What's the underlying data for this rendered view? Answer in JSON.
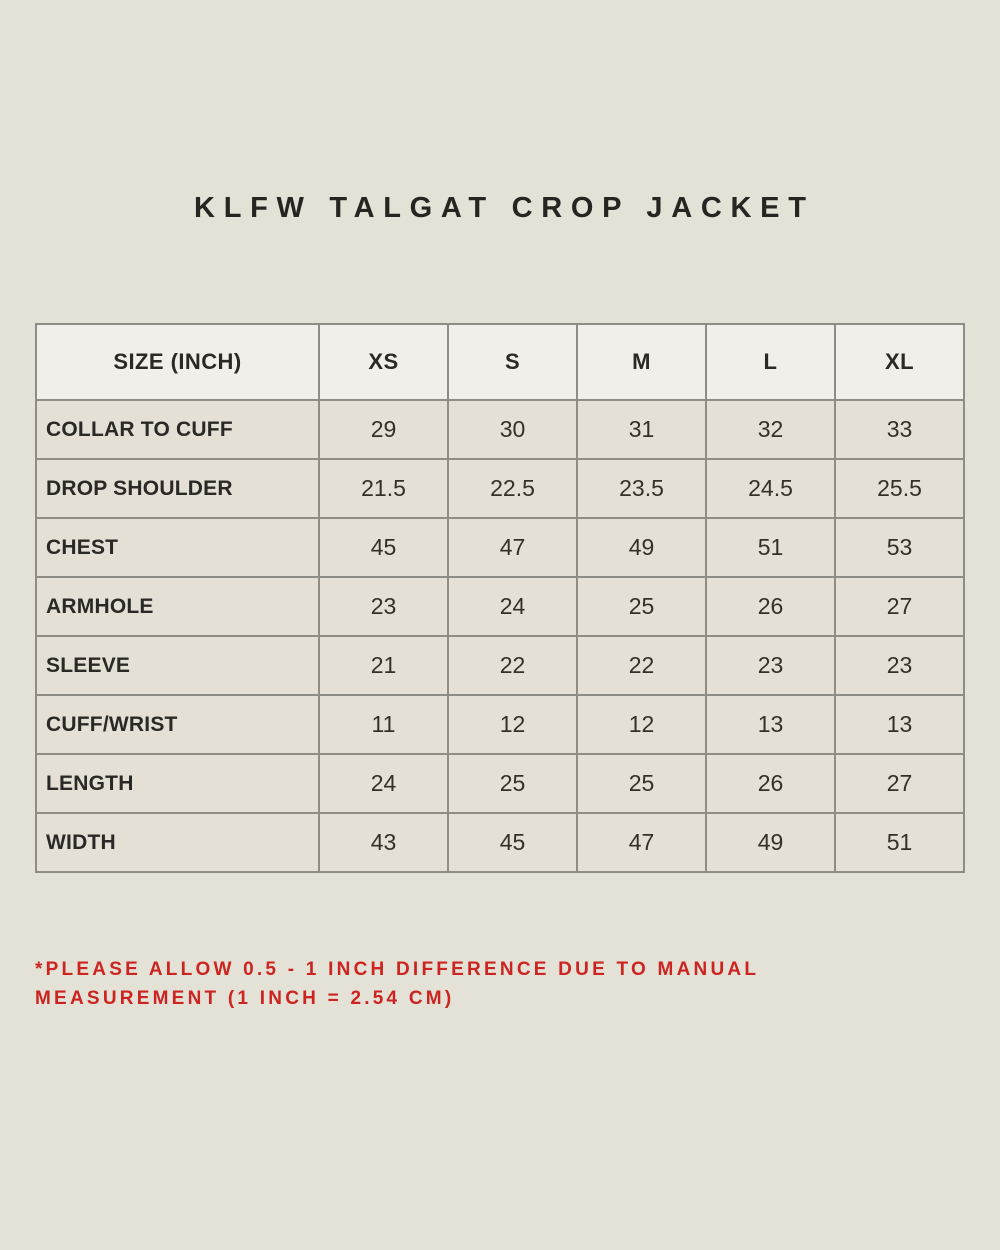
{
  "title": "KLFW TALGAT CROP JACKET",
  "table": {
    "header": [
      "SIZE (INCH)",
      "XS",
      "S",
      "M",
      "L",
      "XL"
    ],
    "rows": [
      {
        "label": "COLLAR TO CUFF",
        "values": [
          "29",
          "30",
          "31",
          "32",
          "33"
        ]
      },
      {
        "label": "DROP SHOULDER",
        "values": [
          "21.5",
          "22.5",
          "23.5",
          "24.5",
          "25.5"
        ]
      },
      {
        "label": "CHEST",
        "values": [
          "45",
          "47",
          "49",
          "51",
          "53"
        ]
      },
      {
        "label": "ARMHOLE",
        "values": [
          "23",
          "24",
          "25",
          "26",
          "27"
        ]
      },
      {
        "label": "SLEEVE",
        "values": [
          "21",
          "22",
          "22",
          "23",
          "23"
        ]
      },
      {
        "label": "CUFF/WRIST",
        "values": [
          "11",
          "12",
          "12",
          "13",
          "13"
        ]
      },
      {
        "label": "LENGTH",
        "values": [
          "24",
          "25",
          "25",
          "26",
          "27"
        ]
      },
      {
        "label": "WIDTH",
        "values": [
          "43",
          "45",
          "47",
          "49",
          "51"
        ]
      }
    ]
  },
  "note": "*PLEASE ALLOW 0.5 - 1 INCH DIFFERENCE DUE TO MANUAL MEASUREMENT (1 INCH = 2.54 CM)",
  "colors": {
    "page_background": "#e4e1d7",
    "header_row_background": "#f0efe9",
    "data_row_background": "#e4e0d6",
    "table_border": "#8e8d85",
    "title_text": "#262522",
    "note_text": "#cc2420"
  }
}
